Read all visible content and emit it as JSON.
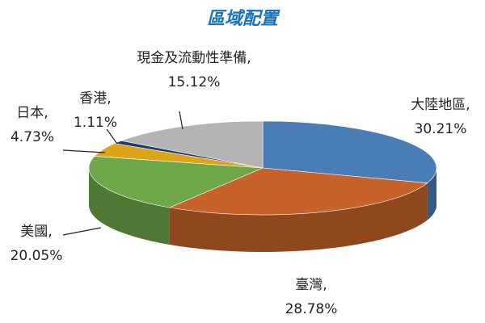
{
  "chart_data": {
    "type": "pie3d",
    "title": "區域配置",
    "categories": [
      "大陸地區,",
      "臺灣,",
      "美國,",
      "日本,",
      "香港,",
      "現金及流動性準備,"
    ],
    "values": [
      30.21,
      28.78,
      20.05,
      4.73,
      1.11,
      15.12
    ],
    "value_labels": [
      "30.21%",
      "28.78%",
      "20.05%",
      "4.73%",
      "1.11%",
      "15.12%"
    ],
    "colors": [
      "#4a7db5",
      "#c6622a",
      "#6ea64a",
      "#dca419",
      "#1f3c70",
      "#b4b4b4"
    ]
  }
}
